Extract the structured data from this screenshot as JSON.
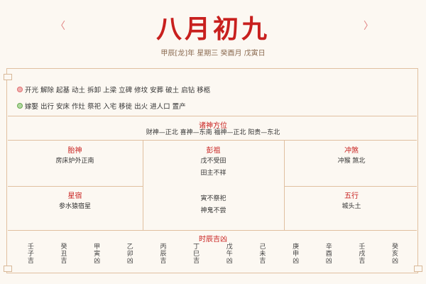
{
  "header": {
    "prev_label": "〈",
    "next_label": "〉",
    "lunar_date": "八月初九",
    "ganzhi": "甲辰[龙]年 星期三 癸酉月 戊寅日"
  },
  "yi": {
    "icon": "yi-badge-icon",
    "color": "#e07070",
    "items": "开光 解除 起基 动土 拆卸 上梁 立碑 修坟 安葬 破土 启钻 移柩"
  },
  "ji": {
    "icon": "ji-badge-icon",
    "color": "#6aaa50",
    "items": "嫁娶 出行 安床 作灶 祭祀 入宅 移徙 出火 进人口 置产"
  },
  "deities": {
    "title": "诸神方位",
    "text": "财神—正北 喜神—东南 福神—正北 阳贵—东北"
  },
  "taishen": {
    "title": "胎神",
    "text": "房床炉外正南"
  },
  "pengzu": {
    "title": "彭祖",
    "line1": "戊不受田",
    "line2": "田主不祥",
    "line3": "寅不祭祀",
    "line4": "神鬼不尝"
  },
  "chongsha": {
    "title": "冲煞",
    "text": "冲猴 煞北"
  },
  "xingxiu": {
    "title": "星宿",
    "text": "参水猿宿星"
  },
  "wuxing": {
    "title": "五行",
    "text": "城头土"
  },
  "hours": {
    "title": "时辰吉凶",
    "items": [
      "壬子吉",
      "癸丑吉",
      "甲寅凶",
      "乙卯凶",
      "丙辰吉",
      "丁巳吉",
      "戊午凶",
      "己未吉",
      "庚申凶",
      "辛酉凶",
      "壬戌吉",
      "癸亥凶"
    ]
  },
  "colors": {
    "accent": "#c8201e",
    "border": "#e0c0a0",
    "background": "#fcf8f2"
  }
}
